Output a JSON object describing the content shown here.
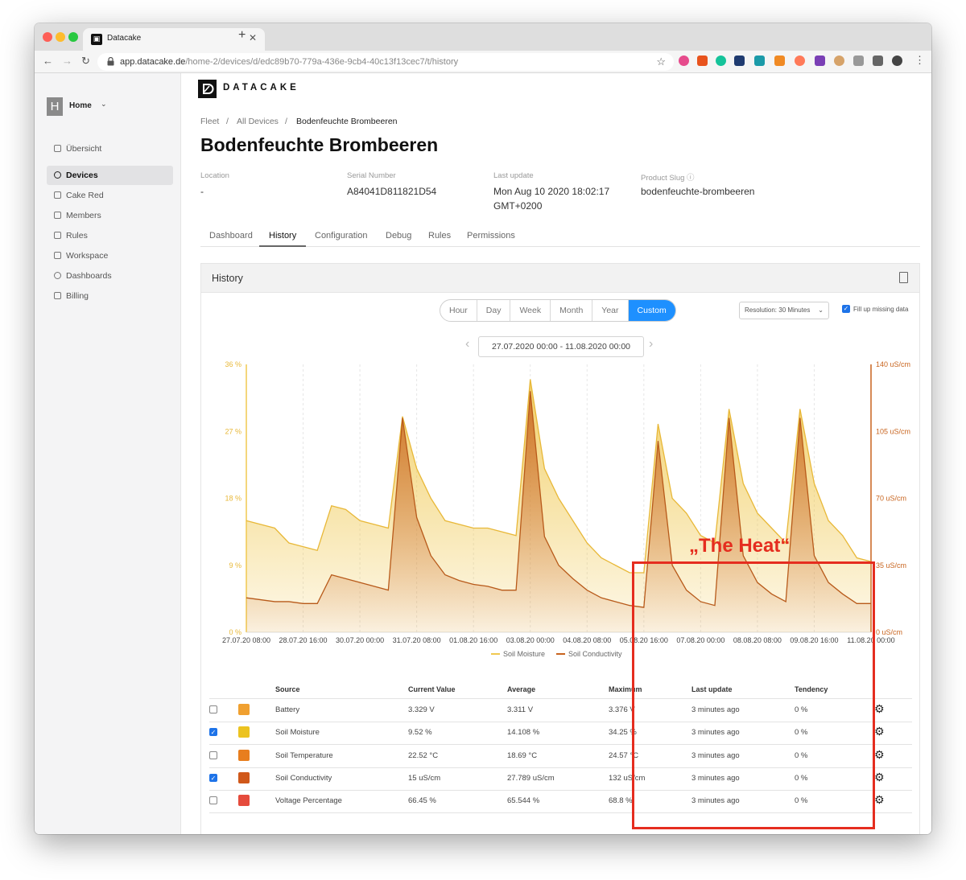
{
  "browser": {
    "tab_title": "Datacake",
    "url_host": "app.datacake.de",
    "url_path": "/home-2/devices/d/edc89b70-779a-436e-9cb4-40c13f13cec7/t/history"
  },
  "sidebar": {
    "workspace_badge": "H",
    "workspace_name": "Home",
    "items": [
      {
        "label": "Übersicht",
        "active": false,
        "icon": "overview-icon"
      },
      {
        "label": "Devices",
        "active": true,
        "icon": "devices-icon"
      },
      {
        "label": "Cake Red",
        "active": false,
        "icon": "cake-red-icon"
      },
      {
        "label": "Members",
        "active": false,
        "icon": "members-icon"
      },
      {
        "label": "Rules",
        "active": false,
        "icon": "rules-icon"
      },
      {
        "label": "Workspace",
        "active": false,
        "icon": "workspace-icon"
      },
      {
        "label": "Dashboards",
        "active": false,
        "icon": "dashboards-icon"
      },
      {
        "label": "Billing",
        "active": false,
        "icon": "billing-icon"
      }
    ]
  },
  "header": {
    "logo_text": "DATACAKE",
    "breadcrumb": [
      "Fleet",
      "All Devices",
      "Bodenfeuchte Brombeeren"
    ],
    "breadcrumb_sep": "/",
    "title": "Bodenfeuchte Brombeeren"
  },
  "meta": {
    "location_label": "Location",
    "location_value": "-",
    "serial_label": "Serial Number",
    "serial_value": "A84041D811821D54",
    "update_label": "Last update",
    "update_value_1": "Mon Aug 10 2020 18:02:17",
    "update_value_2": "GMT+0200",
    "slug_label": "Product Slug",
    "slug_value": "bodenfeuchte-brombeeren"
  },
  "tabs": [
    "Dashboard",
    "History",
    "Configuration",
    "Debug",
    "Rules",
    "Permissions"
  ],
  "active_tab": "History",
  "history": {
    "panel_title": "History",
    "ranges": [
      "Hour",
      "Day",
      "Week",
      "Month",
      "Year",
      "Custom"
    ],
    "active_range": "Custom",
    "resolution": "Resolution: 30 Minutes",
    "fill_missing": "Fill up missing data",
    "date_range": "27.07.2020 00:00 - 11.08.2020 00:00",
    "annotation": "„The Heat“"
  },
  "colors": {
    "accent": "#1e90ff",
    "soil_moisture": "#f0c850",
    "soil_conductivity": "#c8641e",
    "annotation": "#e52d1f"
  },
  "chart_data": {
    "type": "area",
    "x": [
      "27.07.20 08:00",
      "27.07.20 16:00",
      "28.07.20 00:00",
      "28.07.20 08:00",
      "28.07.20 16:00",
      "29.07.20 00:00",
      "29.07.20 08:00",
      "29.07.20 16:00",
      "30.07.20 00:00",
      "30.07.20 08:00",
      "30.07.20 16:00",
      "31.07.20 00:00",
      "31.07.20 08:00",
      "31.07.20 16:00",
      "01.08.20 00:00",
      "01.08.20 08:00",
      "01.08.20 16:00",
      "02.08.20 00:00",
      "02.08.20 08:00",
      "02.08.20 16:00",
      "03.08.20 00:00",
      "03.08.20 08:00",
      "03.08.20 16:00",
      "04.08.20 00:00",
      "04.08.20 08:00",
      "04.08.20 16:00",
      "05.08.20 00:00",
      "05.08.20 08:00",
      "05.08.20 16:00",
      "06.08.20 00:00",
      "06.08.20 08:00",
      "06.08.20 16:00",
      "07.08.20 00:00",
      "07.08.20 08:00",
      "07.08.20 16:00",
      "08.08.20 00:00",
      "08.08.20 08:00",
      "08.08.20 16:00",
      "09.08.20 00:00",
      "09.08.20 08:00",
      "09.08.20 16:00",
      "10.08.20 00:00",
      "10.08.20 08:00",
      "10.08.20 16:00",
      "11.08.20 00:00"
    ],
    "x_ticks": [
      "27.07.20 08:00",
      "28.07.20 16:00",
      "30.07.20 00:00",
      "31.07.20 08:00",
      "01.08.20 16:00",
      "03.08.20 00:00",
      "04.08.20 08:00",
      "05.08.20 16:00",
      "07.08.20 00:00",
      "08.08.20 08:00",
      "09.08.20 16:00",
      "11.08.20 00:00"
    ],
    "series": [
      {
        "name": "Soil Moisture",
        "axis": "left",
        "unit": "%",
        "values": [
          15,
          14.5,
          14,
          12,
          11.5,
          11,
          17,
          16.5,
          15,
          14.5,
          14,
          29,
          22,
          18,
          15,
          14.5,
          14,
          14,
          13.5,
          13,
          34,
          22,
          18,
          15,
          12,
          10,
          9,
          8,
          8,
          28,
          18,
          16,
          13,
          12,
          30,
          20,
          16,
          14,
          12,
          30,
          20,
          15,
          13,
          10,
          9.5
        ]
      },
      {
        "name": "Soil Conductivity",
        "axis": "right",
        "unit": "uS/cm",
        "values": [
          18,
          17,
          16,
          16,
          15,
          15,
          30,
          28,
          26,
          24,
          22,
          112,
          60,
          40,
          30,
          27,
          25,
          24,
          22,
          22,
          126,
          50,
          35,
          28,
          22,
          18,
          16,
          14,
          13,
          100,
          35,
          22,
          16,
          14,
          112,
          40,
          26,
          20,
          16,
          112,
          40,
          26,
          20,
          15,
          15
        ]
      }
    ],
    "y_left_ticks": [
      "0 %",
      "9 %",
      "18 %",
      "27 %",
      "36 %"
    ],
    "y_right_ticks": [
      "0 uS/cm",
      "35 uS/cm",
      "70 uS/cm",
      "105 uS/cm",
      "140 uS/cm"
    ],
    "ylim_left": [
      0,
      36
    ],
    "ylim_right": [
      0,
      140
    ],
    "legend": [
      "Soil Moisture",
      "Soil Conductivity"
    ],
    "legend_position": "bottom"
  },
  "table": {
    "headers": [
      "Source",
      "Current Value",
      "Average",
      "Maximum",
      "Last update",
      "Tendency"
    ],
    "rows": [
      {
        "checked": false,
        "color": "#f0a030",
        "source": "Battery",
        "current": "3.329 V",
        "average": "3.311 V",
        "maximum": "3.376 V",
        "last": "3 minutes ago",
        "tendency": "0 %"
      },
      {
        "checked": true,
        "color": "#ecc320",
        "source": "Soil Moisture",
        "current": "9.52 %",
        "average": "14.108 %",
        "maximum": "34.25 %",
        "last": "3 minutes ago",
        "tendency": "0 %"
      },
      {
        "checked": false,
        "color": "#e87e1e",
        "source": "Soil Temperature",
        "current": "22.52 °C",
        "average": "18.69 °C",
        "maximum": "24.57 °C",
        "last": "3 minutes ago",
        "tendency": "0 %"
      },
      {
        "checked": true,
        "color": "#d0581a",
        "source": "Soil Conductivity",
        "current": "15 uS/cm",
        "average": "27.789 uS/cm",
        "maximum": "132 uS/cm",
        "last": "3 minutes ago",
        "tendency": "0 %"
      },
      {
        "checked": false,
        "color": "#e54b3c",
        "source": "Voltage Percentage",
        "current": "66.45 %",
        "average": "65.544 %",
        "maximum": "68.8 %",
        "last": "3 minutes ago",
        "tendency": "0 %"
      }
    ]
  }
}
